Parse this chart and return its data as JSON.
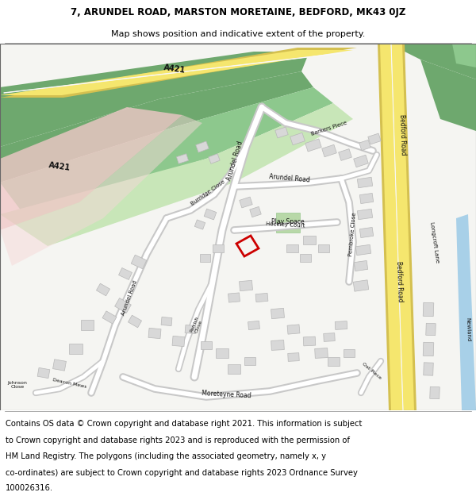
{
  "title_line1": "7, ARUNDEL ROAD, MARSTON MORETAINE, BEDFORD, MK43 0JZ",
  "title_line2": "Map shows position and indicative extent of the property.",
  "footer_lines": [
    "Contains OS data © Crown copyright and database right 2021. This information is subject",
    "to Crown copyright and database rights 2023 and is reproduced with the permission of",
    "HM Land Registry. The polygons (including the associated geometry, namely x, y",
    "co-ordinates) are subject to Crown copyright and database rights 2023 Ordnance Survey",
    "100026316."
  ],
  "title_fontsize": 8.5,
  "subtitle_fontsize": 8.0,
  "footer_fontsize": 7.2,
  "fig_width": 6.0,
  "fig_height": 6.25,
  "bg_white": "#ffffff",
  "map_bg": "#f5f5f2",
  "green_dark": "#6ea86e",
  "green_mid": "#8dc88d",
  "green_light": "#c8e6b8",
  "pink": "#f0c8c8",
  "road_yellow": "#f5e66e",
  "road_yellow_edge": "#d4c050",
  "road_white": "#ffffff",
  "road_grey_edge": "#c8c8c8",
  "building_fill": "#d8d8d8",
  "building_edge": "#b8b8b8",
  "red_prop": "#cc0000",
  "water_blue": "#a8d0e8",
  "water_green": "#88c888"
}
